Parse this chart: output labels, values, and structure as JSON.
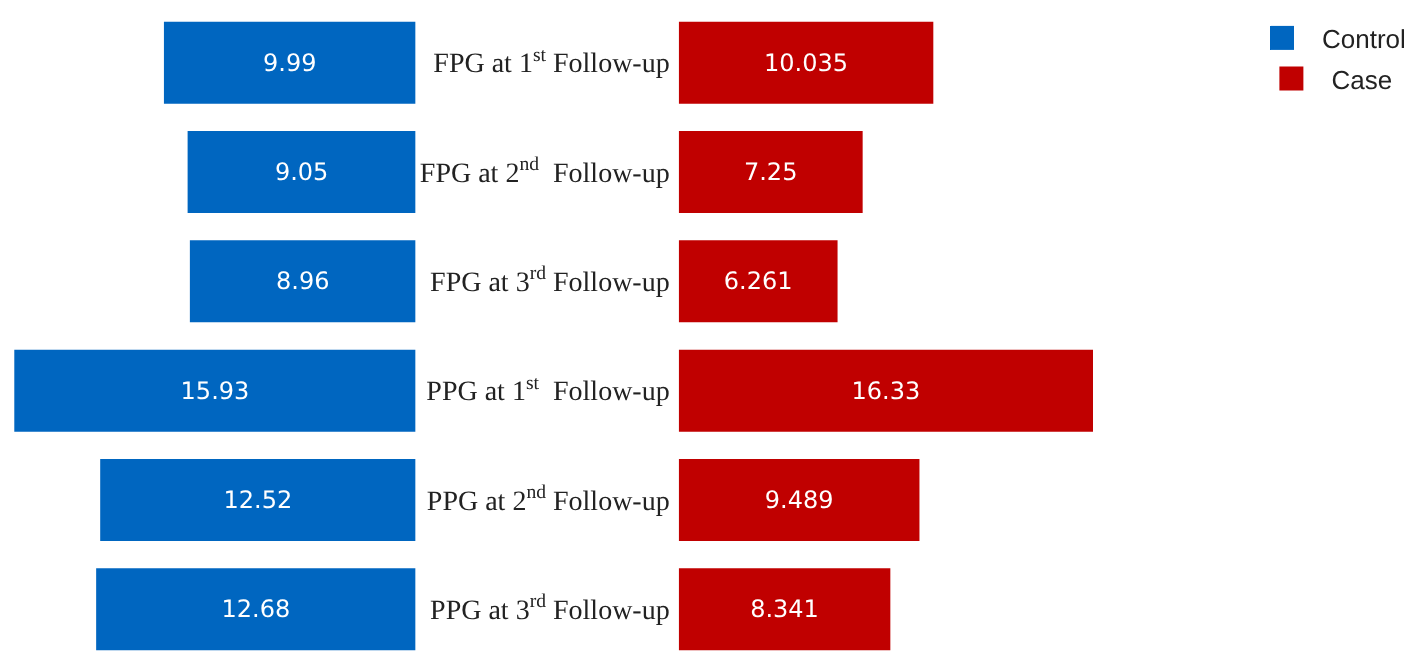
{
  "chart_data": [
    {
      "type": "bar",
      "orientation": "horizontal",
      "categories": [
        "FPG at 1$^{st}$ Follow-up",
        "FPG at 2$^{nd}$  Follow-up",
        "FPG at 3$^{rd}$ Follow-up",
        "PPG at 1$^{st}$  Follow-up",
        "PPG at 2$^{nd}$ Follow-up",
        "PPG at 3$^{rd}$ Follow-up"
      ],
      "tick_labels": "y",
      "grid": false,
      "series": [
        {
          "name": "Control",
          "color": "#0066c0",
          "values": [
            9.99,
            9.05,
            8.96,
            15.93,
            12.52,
            12.68
          ]
        }
      ],
      "data_labels": true,
      "legend": "top right"
    },
    {
      "type": "bar",
      "orientation": "horizontal",
      "categories": [
        null,
        null,
        null,
        null,
        null,
        null
      ],
      "grid": false,
      "series": [
        {
          "name": "Case",
          "color": "#c00000",
          "values": [
            10.035,
            7.25,
            6.261,
            16.33,
            9.489,
            8.341
          ]
        }
      ],
      "data_labels": true,
      "legend": "top right"
    }
  ]
}
